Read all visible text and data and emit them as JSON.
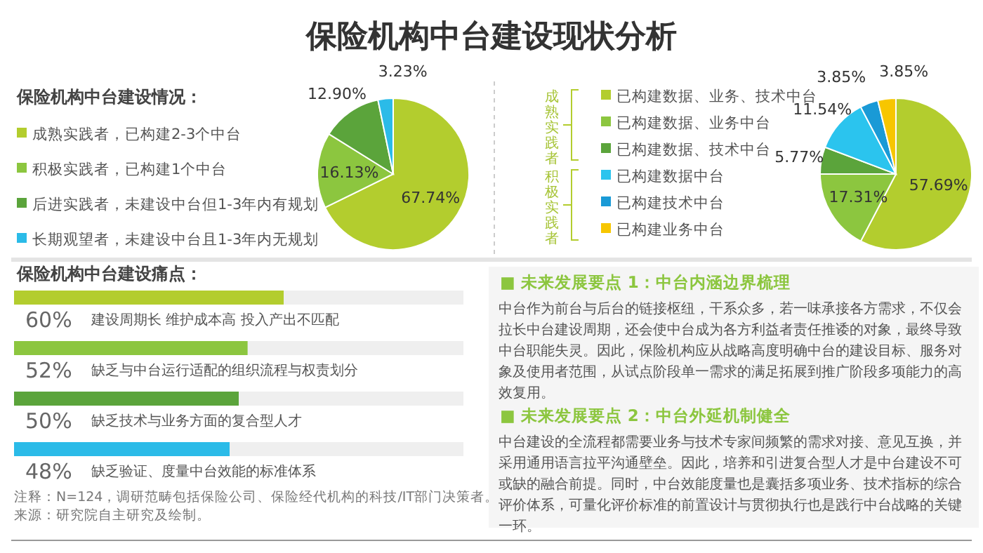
{
  "chart_data": [
    {
      "type": "pie",
      "title": "保险机构中台建设现状分析",
      "subtitle": "保险机构中台建设情况：",
      "legend": "left",
      "categories": [
        "成熟实践者，已构建2-3个中台",
        "积极实践者，已构建1个中台",
        "后进实践者，未建设中台但1-3年内有规划",
        "长期观望者，未建设中台且1-3年内无规划"
      ],
      "values": [
        67.74,
        16.13,
        12.9,
        3.23
      ],
      "value_labels": [
        "67.74%",
        "16.13%",
        "12.90%",
        "3.23%"
      ],
      "colors": [
        "#b3cd2e",
        "#8cc63f",
        "#5ba43b",
        "#2bbbe8"
      ]
    },
    {
      "type": "pie",
      "legend": "left",
      "categories": [
        "已构建数据、业务、技术中台",
        "已构建数据、业务中台",
        "已构建数据、技术中台",
        "已构建数据中台",
        "已构建技术中台",
        "已构建业务中台"
      ],
      "values": [
        57.69,
        17.31,
        5.77,
        11.54,
        3.85,
        3.85
      ],
      "value_labels": [
        "57.69%",
        "17.31%",
        "5.77%",
        "11.54%",
        "3.85%",
        "3.85%"
      ],
      "colors": [
        "#b3cd2e",
        "#8cc63f",
        "#5ba43b",
        "#2bc4ee",
        "#1a9ad6",
        "#f7c600"
      ],
      "annotations": [
        "成熟实践者",
        "积极实践者"
      ]
    },
    {
      "type": "bar",
      "orientation": "horizontal",
      "stacked": true,
      "title": "保险机构中台建设痛点：",
      "xlim": [
        0,
        100
      ],
      "tick_labels": false,
      "categories": [
        "建设周期长 维护成本高 投入产出不匹配",
        "缺乏与中台运行适配的组织流程与权责划分",
        "缺乏技术与业务方面的复合型人才",
        "缺乏验证、度量中台效能的标准体系"
      ],
      "series": [
        {
          "values": [
            60,
            52,
            50,
            48
          ],
          "value_labels": [
            "60%",
            "52%",
            "50%",
            "48%"
          ],
          "colors": [
            "#b3cd2e",
            "#8cc63f",
            "#5ba43b",
            "#2bbbe8"
          ]
        },
        {
          "values": [
            40,
            48,
            50,
            52
          ],
          "color": "#efefef"
        }
      ],
      "annotations": [
        "注释：N=124，调研范畴包括保险公司、保险经代机构的科技/IT部门决策者。",
        "来源：研究院自主研究及绘制。"
      ]
    },
    {
      "type": "other",
      "annotations": [
        "■ 未来发展要点 1：中台内涵边界梳理",
        "中台作为前台与后台的链接枢纽，干系众多，若一味承接各方需求，不仅会拉长中台建设周期，还会使中台成为各方利益者责任推诿的对象，最终导致中台职能失灵。因此，保险机构应从战略高度明确中台的建设目标、服务对象及使用者范围，从试点阶段单一需求的满足拓展到推广阶段多项能力的高效复用。",
        "■ 未来发展要点 2：中台外延机制健全",
        "中台建设的全流程都需要业务与技术专家间频繁的需求对接、意见互换，并采用通用语言拉平沟通壁垒。因此，培养和引进复合型人才是中台建设不可或缺的融合前提。同时，中台效能度量也是囊括多项业务、技术指标的综合评价体系，可量化评价标准的前置设计与贯彻执行也是践行中台战略的关键一环。"
      ]
    }
  ]
}
